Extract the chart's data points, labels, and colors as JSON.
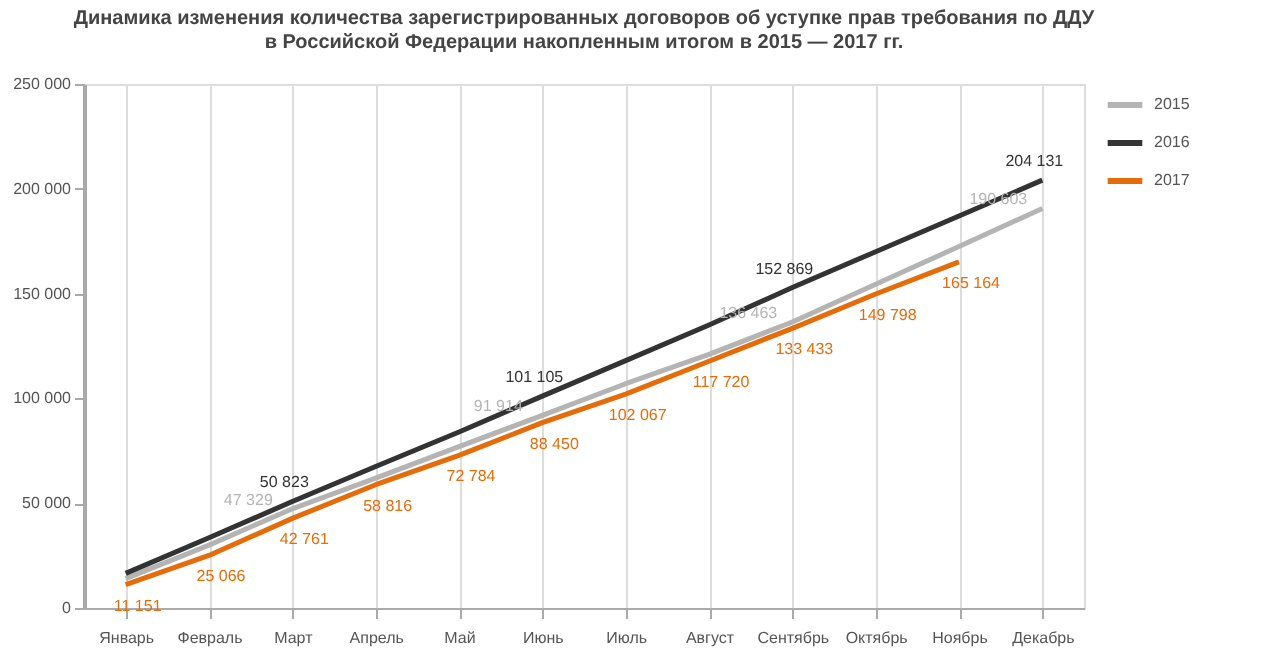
{
  "chart_data": {
    "type": "line",
    "title": [
      "Динамика изменения количества зарегистрированных договоров об уступке прав требования по ДДУ",
      "в Российской Федерации накопленным итогом в 2015 — 2017 гг."
    ],
    "categories": [
      "Январь",
      "Февраль",
      "Март",
      "Апрель",
      "Май",
      "Июнь",
      "Июль",
      "Август",
      "Сентябрь",
      "Октябрь",
      "Ноябрь",
      "Декабрь"
    ],
    "series": [
      {
        "name": "2015",
        "color": "#b4b4b4",
        "values": [
          14000,
          30000,
          47329,
          62000,
          77000,
          91914,
          107000,
          121000,
          136463,
          154500,
          172500,
          190603
        ],
        "value_labels": [
          null,
          null,
          "47 329",
          null,
          null,
          "91 914",
          null,
          null,
          "136 463",
          null,
          null,
          "190 603"
        ]
      },
      {
        "name": "2016",
        "color": "#333333",
        "values": [
          16500,
          33500,
          50823,
          67500,
          84000,
          101105,
          118000,
          135000,
          152869,
          170000,
          187000,
          204131
        ],
        "value_labels": [
          null,
          null,
          "50 823",
          null,
          null,
          "101 105",
          null,
          null,
          "152 869",
          null,
          null,
          "204 131"
        ]
      },
      {
        "name": "2017",
        "color": "#e46c0a",
        "values": [
          11151,
          25066,
          42761,
          58816,
          72784,
          88450,
          102067,
          117720,
          133433,
          149798,
          165164,
          null
        ],
        "value_labels": [
          "11 151",
          "25 066",
          "42 761",
          "58 816",
          "72 784",
          "88 450",
          "102 067",
          "117 720",
          "133 433",
          "149 798",
          "165 164",
          null
        ]
      }
    ],
    "ylim": [
      0,
      250000
    ],
    "yticks": [
      {
        "value": 0,
        "label": "0"
      },
      {
        "value": 50000,
        "label": "50 000"
      },
      {
        "value": 100000,
        "label": "100 000"
      },
      {
        "value": 150000,
        "label": "150 000"
      },
      {
        "value": 200000,
        "label": "200 000"
      },
      {
        "value": 250000,
        "label": "250 000"
      }
    ],
    "grid": "x",
    "legend": "right",
    "marker": "none",
    "line_style": "solid"
  }
}
